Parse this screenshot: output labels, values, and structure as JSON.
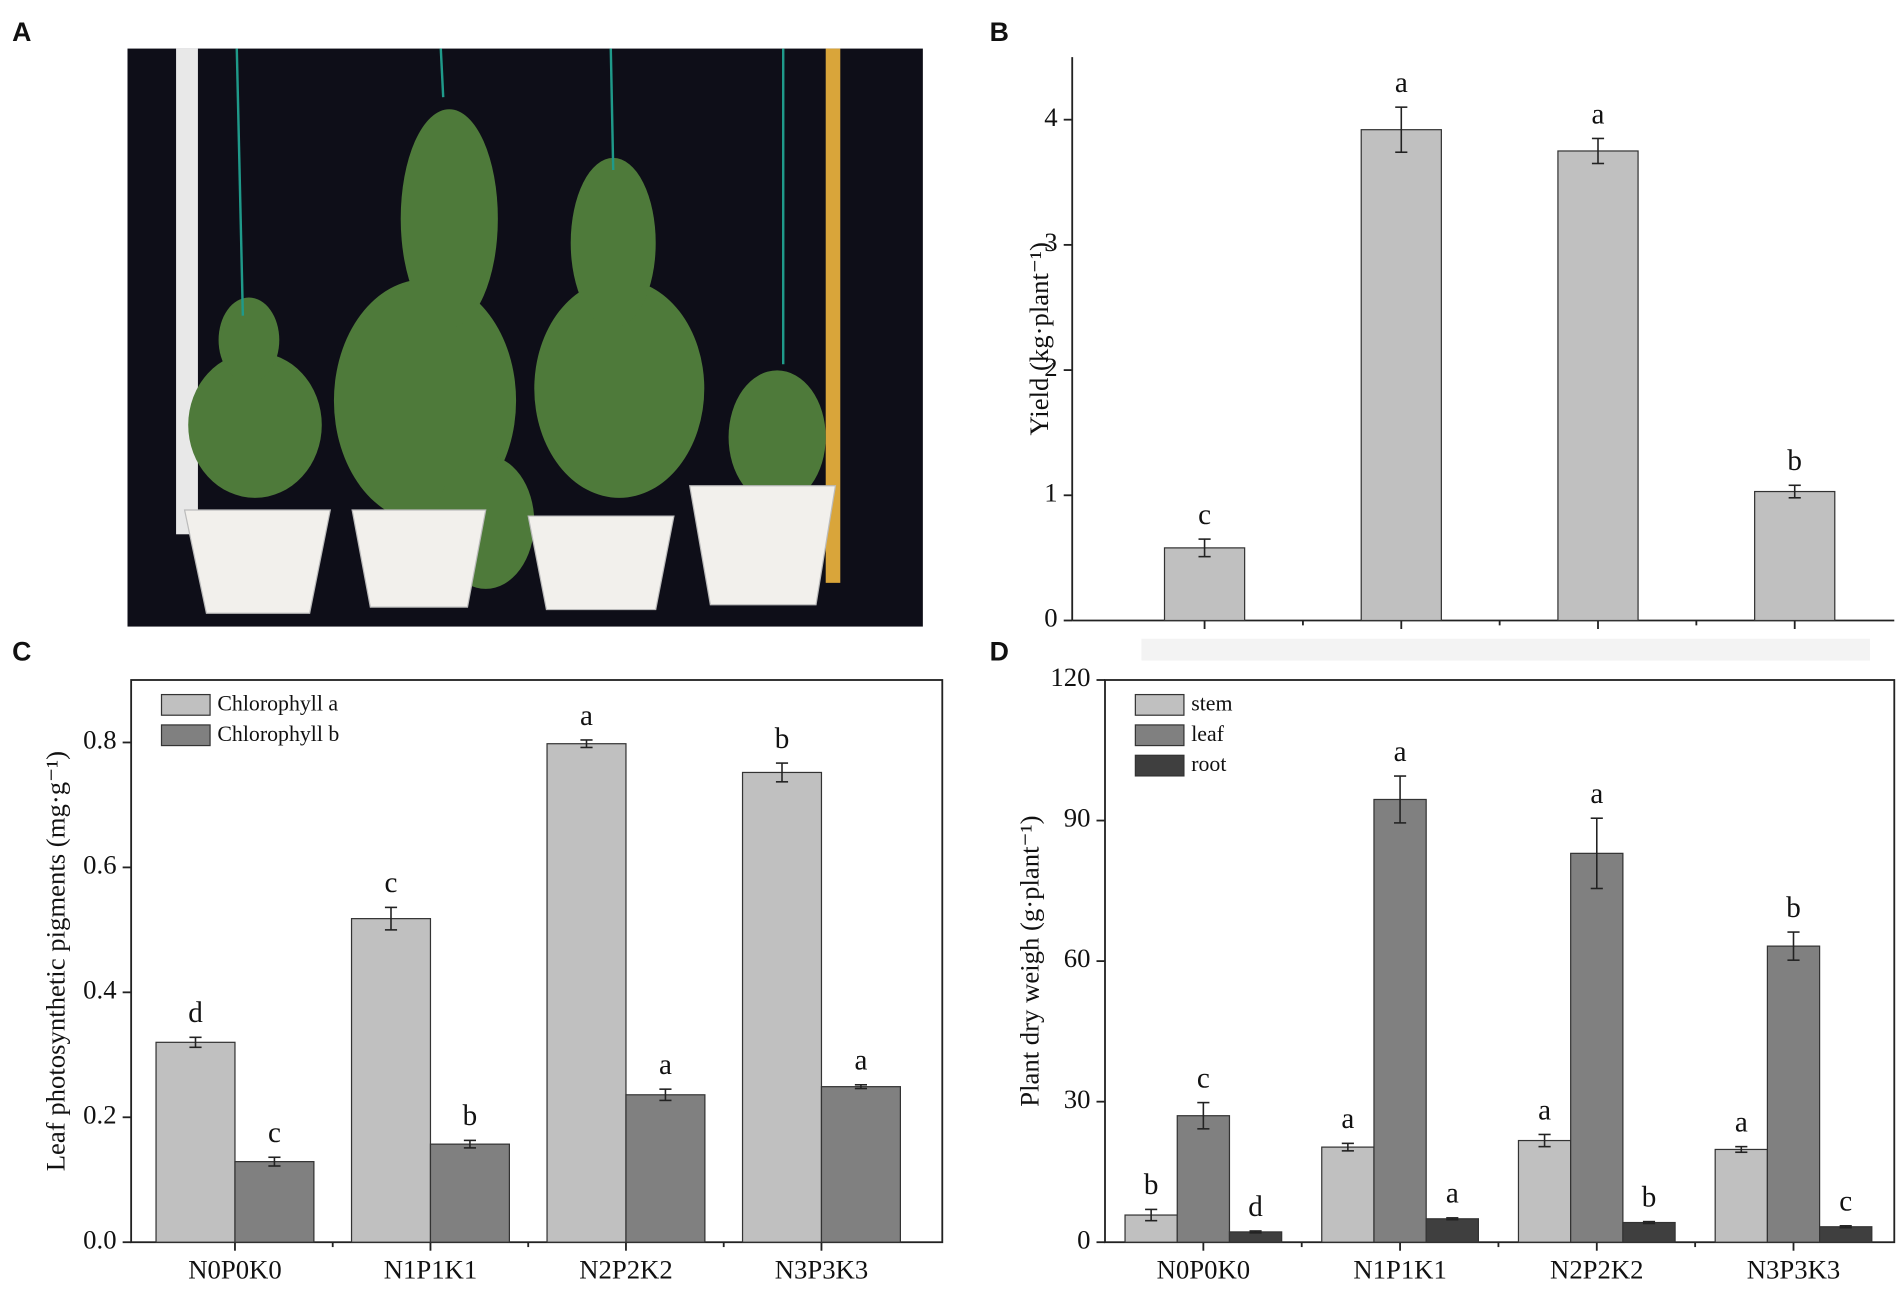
{
  "panels": [
    "A",
    "B",
    "C",
    "D"
  ],
  "chart_data": [
    {
      "type": "bar",
      "ylabel": "Yield (kg·plant⁻¹)",
      "categories": [
        null,
        null,
        null,
        null
      ],
      "values": [
        0.58,
        3.92,
        3.75,
        1.03
      ],
      "errors": [
        0.07,
        0.18,
        0.1,
        0.05
      ],
      "annotations": [
        "c",
        "a",
        "a",
        "b"
      ],
      "color": "#c0c0c0",
      "ylim": [
        0,
        4.5
      ],
      "yticks": [
        0,
        1,
        2,
        3,
        4
      ],
      "box": false
    },
    {
      "type": "bar",
      "ylabel": "Leaf photosynthetic pigments (mg·g⁻¹)",
      "categories": [
        "N0P0K0",
        "N1P1K1",
        "N2P2K2",
        "N3P3K3"
      ],
      "series": [
        {
          "name": "Chlorophyll a",
          "color": "#c0c0c0",
          "values": [
            0.32,
            0.518,
            0.798,
            0.752
          ],
          "errors": [
            0.008,
            0.018,
            0.006,
            0.015
          ],
          "annotations": [
            "d",
            "c",
            "a",
            "b"
          ]
        },
        {
          "name": "Chlorophyll b",
          "color": "#808080",
          "values": [
            0.129,
            0.157,
            0.236,
            0.249
          ],
          "errors": [
            0.007,
            0.006,
            0.009,
            0.003
          ],
          "annotations": [
            "c",
            "b",
            "a",
            "a"
          ]
        }
      ],
      "ylim": [
        0,
        0.9
      ],
      "yticks": [
        {
          "value": 0,
          "label": "0.0"
        },
        0.2,
        0.4,
        0.6,
        0.8
      ],
      "box": true,
      "legend": "upper left"
    },
    {
      "type": "bar",
      "ylabel": "Plant dry weigh (g·plant⁻¹)",
      "categories": [
        "N0P0K0",
        "N1P1K1",
        "N2P2K2",
        "N3P3K3"
      ],
      "series": [
        {
          "name": "stem",
          "color": "#c0c0c0",
          "values": [
            5.8,
            20.3,
            21.7,
            19.8
          ],
          "errors": [
            1.2,
            0.8,
            1.3,
            0.6
          ],
          "annotations": [
            "b",
            "a",
            "a",
            "a"
          ]
        },
        {
          "name": "leaf",
          "color": "#808080",
          "values": [
            27,
            94.5,
            83,
            63.2
          ],
          "errors": [
            2.8,
            5.0,
            7.5,
            3.0
          ],
          "annotations": [
            "c",
            "a",
            "a",
            "b"
          ]
        },
        {
          "name": "root",
          "color": "#3f3f3f",
          "values": [
            2.2,
            5.0,
            4.2,
            3.3
          ],
          "errors": [
            0.2,
            0.2,
            0.2,
            0.2
          ],
          "annotations": [
            "d",
            "a",
            "b",
            "c"
          ]
        }
      ],
      "ylim": [
        0,
        120
      ],
      "yticks": [
        0,
        30,
        60,
        90,
        120
      ],
      "box": true,
      "legend": "upper left"
    }
  ]
}
